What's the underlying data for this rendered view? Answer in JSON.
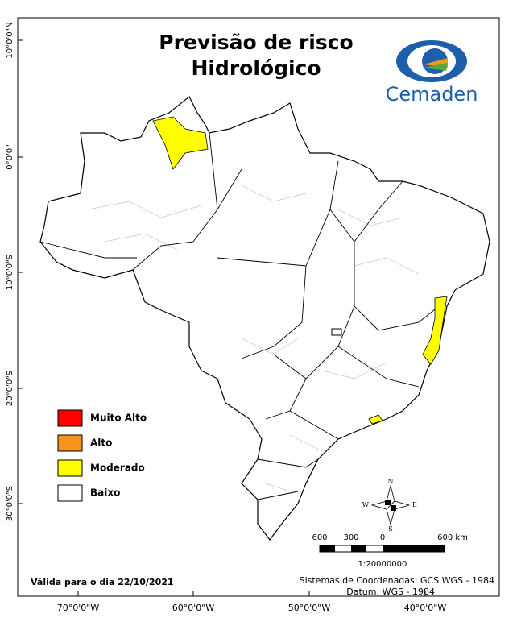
{
  "title": [
    "Previsão de risco",
    "Hidrológico"
  ],
  "logo": {
    "text": "Cemaden"
  },
  "legend": [
    {
      "label": "Muito Alto",
      "color": "#ff0000"
    },
    {
      "label": "Alto",
      "color": "#f7941d"
    },
    {
      "label": "Moderado",
      "color": "#ffff00"
    },
    {
      "label": "Baixo",
      "color": "#ffffff"
    }
  ],
  "axes": {
    "left": [
      "10°0'0\"N",
      "0°0'0\"",
      "10°0'0\"S",
      "20°0'0\"S",
      "30°0'0\"S"
    ],
    "bottom": [
      "70°0'0\"W",
      "60°0'0\"W",
      "50°0'0\"W",
      "40°0'0\"W"
    ]
  },
  "compass": {
    "n": "N",
    "s": "S",
    "e": "E",
    "w": "W"
  },
  "scale": {
    "labels": [
      "600",
      "300",
      "0",
      "600 km"
    ],
    "ratio": "1:20000000"
  },
  "footer": {
    "valid": "Válida para o dia 22/10/2021",
    "crs": "Sistemas de Coordenadas: GCS WGS - 1984",
    "datum": "Datum: WGS - 1984"
  }
}
